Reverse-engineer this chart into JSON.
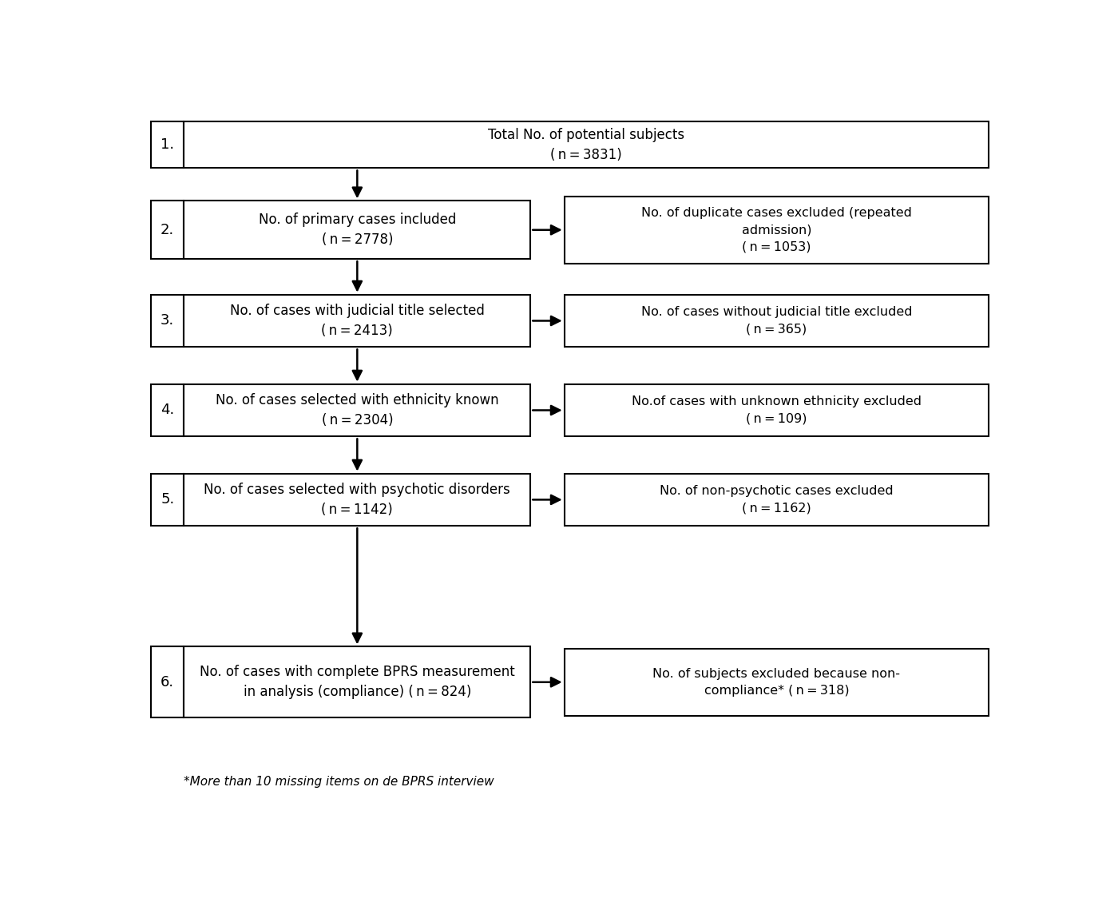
{
  "background_color": "#ffffff",
  "fig_width": 14.0,
  "fig_height": 11.54,
  "steps": [
    {
      "number": "1.",
      "main_text": "Total No. of potential subjects\n( n = 3831)",
      "side_text": null
    },
    {
      "number": "2.",
      "main_text": "No. of primary cases included\n( n = 2778)",
      "side_text": "No. of duplicate cases excluded (repeated\nadmission)\n( n = 1053)"
    },
    {
      "number": "3.",
      "main_text": "No. of cases with judicial title selected\n( n = 2413)",
      "side_text": "No. of cases without judicial title excluded\n( n = 365)"
    },
    {
      "number": "4.",
      "main_text": "No. of cases selected with ethnicity known\n( n = 2304)",
      "side_text": "No.of cases with unknown ethnicity excluded\n( n = 109)"
    },
    {
      "number": "5.",
      "main_text": "No. of cases selected with psychotic disorders\n( n = 1142)",
      "side_text": "No. of non-psychotic cases excluded\n( n = 1162)"
    },
    {
      "number": "6.",
      "main_text": "No. of cases with complete BPRS measurement\nin analysis (compliance) ( n = 824)",
      "side_text": "No. of subjects excluded because non-\ncompliance* ( n = 318)"
    }
  ],
  "footnote": "*More than 10 missing items on de BPRS interview",
  "box_edge_color": "#000000",
  "text_color": "#000000",
  "arrow_color": "#000000",
  "number_fontsize": 13,
  "main_fontsize": 12,
  "side_fontsize": 11.5,
  "footnote_fontsize": 11
}
